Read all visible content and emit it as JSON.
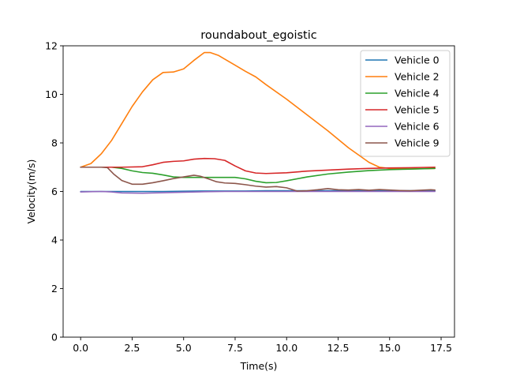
{
  "chart_data": {
    "type": "line",
    "title": "roundabout_egoistic",
    "xlabel": "Time(s)",
    "ylabel": "Velocity(m/s)",
    "xlim": [
      -0.85,
      18.15
    ],
    "ylim": [
      0,
      12
    ],
    "xticks": [
      0.0,
      2.5,
      5.0,
      7.5,
      10.0,
      12.5,
      15.0,
      17.5
    ],
    "xtick_labels": [
      "0.0",
      "2.5",
      "5.0",
      "7.5",
      "10.0",
      "12.5",
      "15.0",
      "17.5"
    ],
    "yticks": [
      0,
      2,
      4,
      6,
      8,
      10,
      12
    ],
    "ytick_labels": [
      "0",
      "2",
      "4",
      "6",
      "8",
      "10",
      "12"
    ],
    "grid": false,
    "legend_position": "top-right",
    "series": [
      {
        "name": "Vehicle 0",
        "color": "#1f77b4",
        "x": [
          0.0,
          1.0,
          2.0,
          3.0,
          4.0,
          5.0,
          6.0,
          7.0,
          8.0,
          9.0,
          10.0,
          11.0,
          12.0,
          13.0,
          14.0,
          15.0,
          16.0,
          17.2
        ],
        "y": [
          6.0,
          6.0,
          6.0,
          6.0,
          6.0,
          6.01,
          6.02,
          6.02,
          6.02,
          6.03,
          6.03,
          6.03,
          6.03,
          6.03,
          6.03,
          6.03,
          6.03,
          6.03
        ]
      },
      {
        "name": "Vehicle 2",
        "color": "#ff7f0e",
        "x": [
          0.0,
          0.5,
          1.0,
          1.5,
          2.0,
          2.5,
          3.0,
          3.5,
          4.0,
          4.5,
          5.0,
          5.5,
          6.0,
          6.3,
          6.7,
          7.0,
          7.5,
          8.0,
          8.5,
          9.0,
          10.0,
          11.0,
          12.0,
          13.0,
          14.0,
          14.5,
          15.0,
          16.0,
          17.2
        ],
        "y": [
          7.0,
          7.15,
          7.55,
          8.1,
          8.8,
          9.5,
          10.1,
          10.6,
          10.9,
          10.92,
          11.05,
          11.4,
          11.72,
          11.72,
          11.6,
          11.45,
          11.2,
          10.95,
          10.72,
          10.4,
          9.8,
          9.15,
          8.5,
          7.8,
          7.2,
          7.0,
          6.95,
          6.93,
          6.95
        ]
      },
      {
        "name": "Vehicle 4",
        "color": "#2ca02c",
        "x": [
          0.0,
          1.0,
          1.5,
          2.0,
          2.5,
          3.0,
          3.5,
          4.0,
          4.5,
          5.0,
          6.0,
          7.0,
          7.5,
          8.0,
          8.5,
          9.0,
          9.5,
          10.0,
          11.0,
          12.0,
          13.0,
          14.0,
          15.0,
          16.0,
          17.2
        ],
        "y": [
          7.0,
          7.0,
          7.0,
          6.95,
          6.85,
          6.78,
          6.75,
          6.68,
          6.6,
          6.58,
          6.58,
          6.58,
          6.58,
          6.52,
          6.42,
          6.36,
          6.37,
          6.44,
          6.6,
          6.72,
          6.8,
          6.86,
          6.9,
          6.92,
          6.95
        ]
      },
      {
        "name": "Vehicle 5",
        "color": "#d62728",
        "x": [
          0.0,
          1.0,
          2.0,
          3.0,
          3.5,
          4.0,
          4.5,
          5.0,
          5.5,
          6.0,
          6.5,
          7.0,
          7.5,
          8.0,
          8.5,
          9.0,
          10.0,
          11.0,
          12.0,
          13.0,
          14.0,
          15.0,
          16.0,
          17.2
        ],
        "y": [
          7.0,
          7.0,
          7.0,
          7.02,
          7.1,
          7.2,
          7.24,
          7.26,
          7.33,
          7.36,
          7.35,
          7.28,
          7.05,
          6.85,
          6.76,
          6.74,
          6.77,
          6.84,
          6.88,
          6.92,
          6.95,
          6.97,
          6.98,
          7.0
        ]
      },
      {
        "name": "Vehicle 6",
        "color": "#9467bd",
        "x": [
          0.0,
          1.0,
          1.5,
          2.0,
          3.0,
          4.0,
          5.0,
          6.0,
          7.0,
          8.0,
          9.0,
          10.0,
          11.0,
          12.0,
          13.0,
          14.0,
          15.0,
          16.0,
          17.2
        ],
        "y": [
          5.98,
          6.0,
          5.98,
          5.94,
          5.93,
          5.95,
          5.97,
          5.99,
          6.0,
          6.0,
          6.0,
          6.0,
          6.0,
          6.0,
          6.0,
          6.0,
          6.0,
          6.0,
          6.0
        ]
      },
      {
        "name": "Vehicle 9",
        "color": "#8c564b",
        "x": [
          0.0,
          0.5,
          1.0,
          1.3,
          1.6,
          2.0,
          2.5,
          3.0,
          3.5,
          4.0,
          4.5,
          5.0,
          5.5,
          5.8,
          6.2,
          6.6,
          7.0,
          7.5,
          8.0,
          8.5,
          9.0,
          9.5,
          10.0,
          10.5,
          11.0,
          11.5,
          12.0,
          12.5,
          13.0,
          13.5,
          14.0,
          14.5,
          15.0,
          15.5,
          16.0,
          16.5,
          17.0,
          17.2
        ],
        "y": [
          7.0,
          7.0,
          7.0,
          6.98,
          6.72,
          6.45,
          6.3,
          6.3,
          6.36,
          6.44,
          6.53,
          6.6,
          6.67,
          6.63,
          6.52,
          6.4,
          6.35,
          6.33,
          6.28,
          6.22,
          6.18,
          6.2,
          6.15,
          6.02,
          6.03,
          6.07,
          6.12,
          6.07,
          6.06,
          6.08,
          6.05,
          6.08,
          6.06,
          6.04,
          6.03,
          6.05,
          6.07,
          6.06
        ]
      }
    ]
  }
}
